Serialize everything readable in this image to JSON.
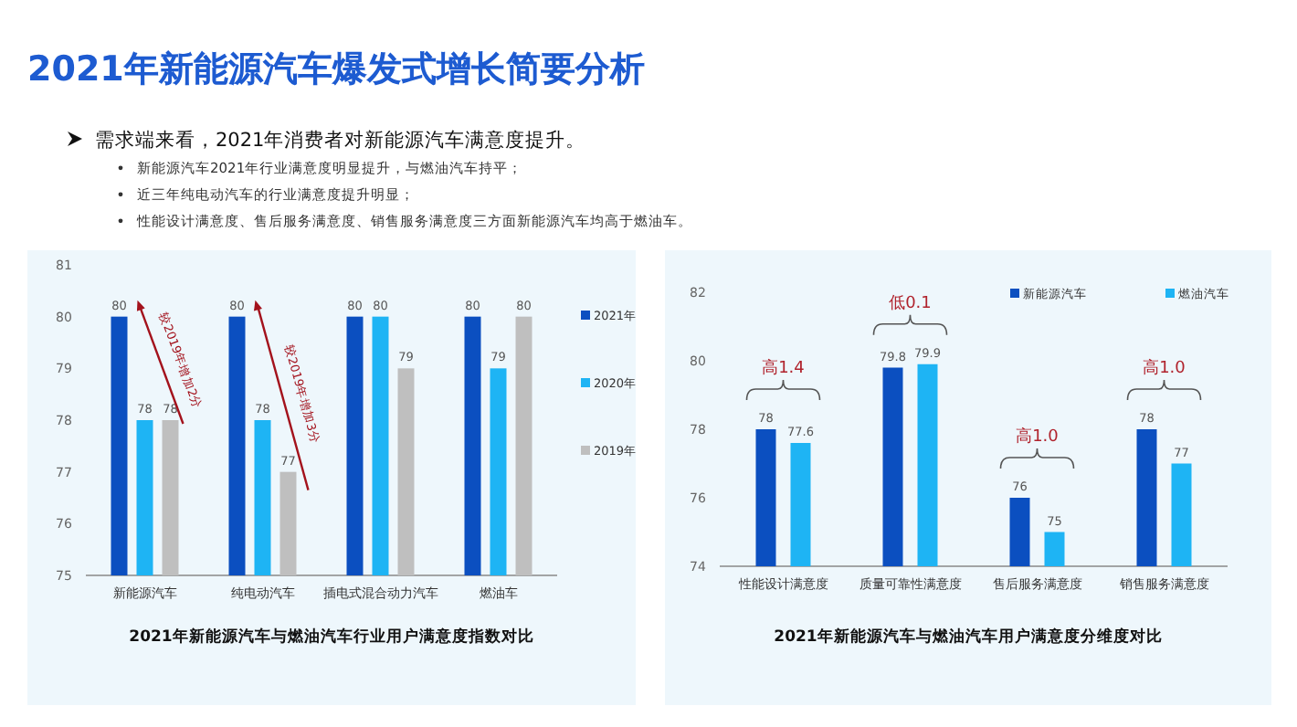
{
  "chart_data": [
    {
      "type": "other",
      "title": "2021年新能源汽车爆发式增长简要分析",
      "annotations": [
        "需求端来看，2021年消费者对新能源汽车满意度提升。",
        "新能源汽车2021年行业满意度明显提升，与燃油汽车持平；",
        "近三年纯电动汽车的行业满意度提升明显；",
        "性能设计满意度、售后服务满意度、销售服务满意度三方面新能源汽车均高于燃油车。"
      ]
    },
    {
      "type": "bar",
      "title": "2021年新能源汽车与燃油汽车行业用户满意度指数对比",
      "categories": [
        "新能源汽车",
        "纯电动汽车",
        "插电式混合动力汽车",
        "燃油车"
      ],
      "series": [
        {
          "name": "2021年",
          "color": "#0b4fc0",
          "values": [
            80,
            80,
            80,
            80
          ]
        },
        {
          "name": "2020年",
          "color": "#1eb4f4",
          "values": [
            78,
            78,
            80,
            79
          ]
        },
        {
          "name": "2019年",
          "color": "#bfbfbf",
          "values": [
            78,
            77,
            79,
            80
          ]
        }
      ],
      "ylim": [
        75,
        81
      ],
      "yticks": [
        75,
        76,
        77,
        78,
        79,
        80,
        81
      ],
      "data_labels": true,
      "legend": "right",
      "grid": false,
      "annotations": [
        "较2019年增加2分",
        "较2019年增加3分"
      ]
    },
    {
      "type": "bar",
      "title": "2021年新能源汽车与燃油汽车用户满意度分维度对比",
      "categories": [
        "性能设计满意度",
        "质量可靠性满意度",
        "售后服务满意度",
        "销售服务满意度"
      ],
      "series": [
        {
          "name": "新能源汽车",
          "color": "#0b4fc0",
          "values": [
            78,
            79.8,
            76,
            78
          ]
        },
        {
          "name": "燃油汽车",
          "color": "#1eb4f4",
          "values": [
            77.6,
            79.9,
            75,
            77
          ]
        }
      ],
      "ylim": [
        74,
        82
      ],
      "yticks": [
        74,
        76,
        78,
        80,
        82
      ],
      "data_labels": true,
      "legend": "top right",
      "grid": false,
      "annotations": [
        "高1.4",
        "低0.1",
        "高1.0",
        "高1.0"
      ]
    }
  ]
}
